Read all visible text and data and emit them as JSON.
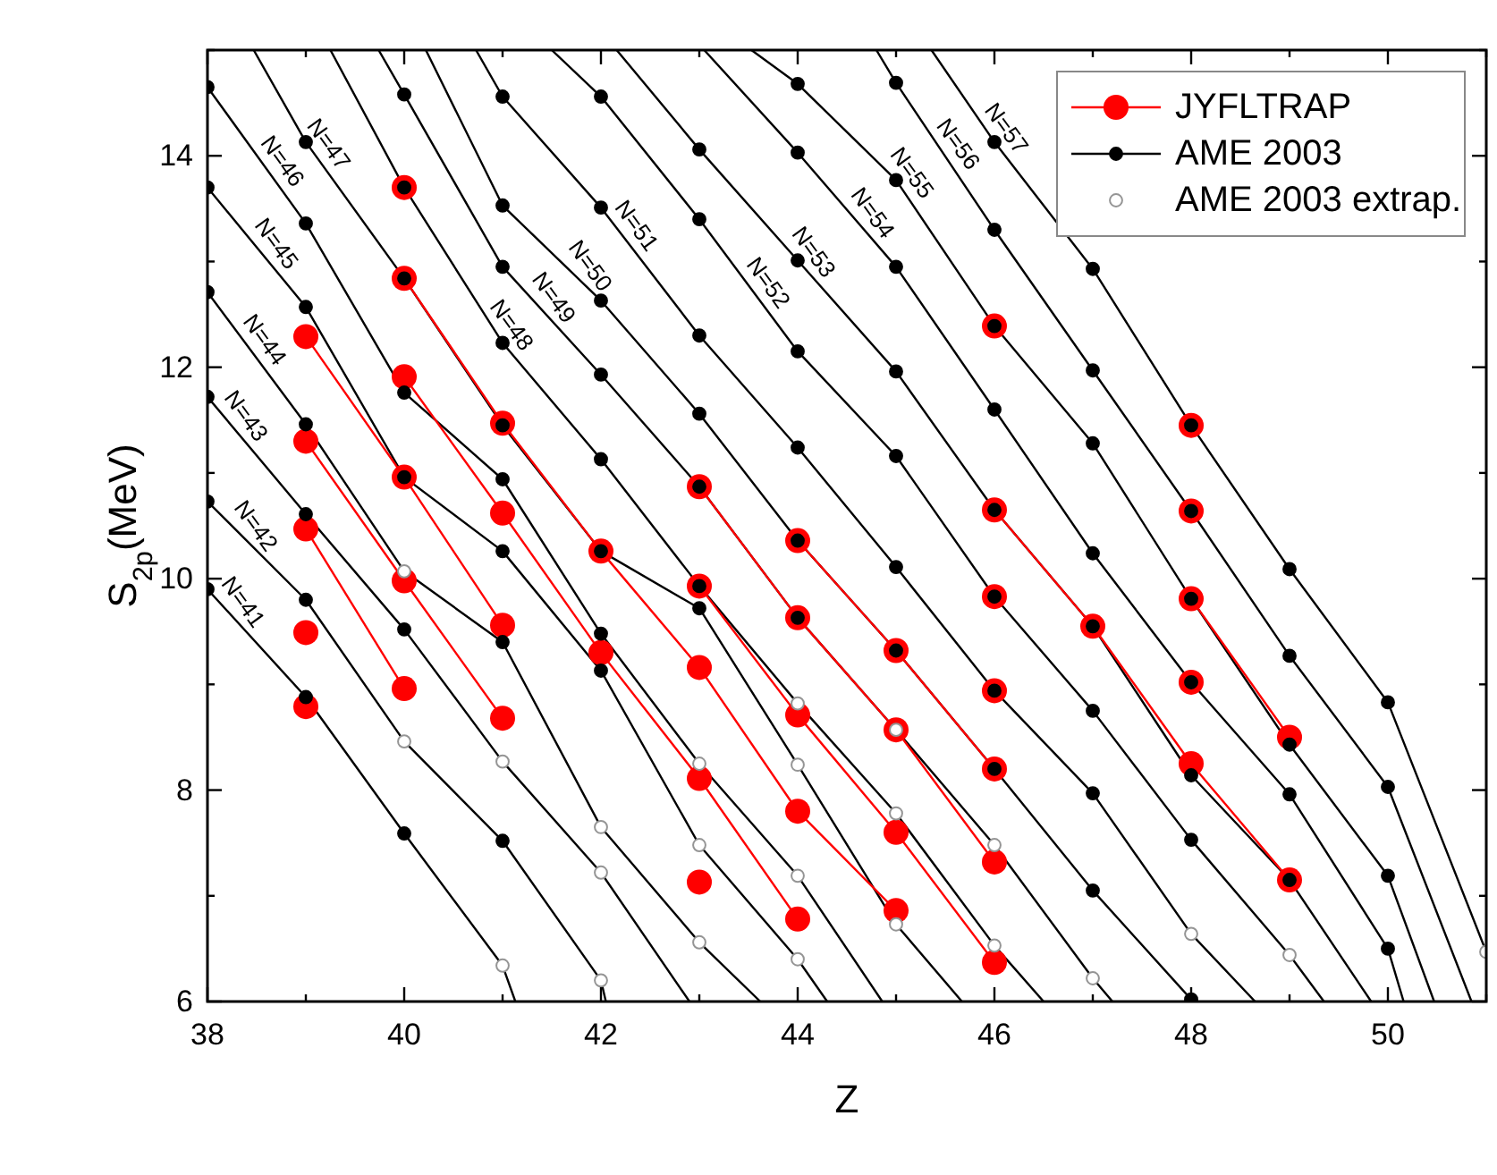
{
  "chart_data": {
    "type": "line",
    "xlabel": "Z",
    "ylabel": "S$_{2p}$(MeV)",
    "xlim": [
      38,
      51
    ],
    "ylim": [
      6,
      15
    ],
    "xticks": [
      38,
      {
        "value": 39,
        "label": null
      },
      40,
      {
        "value": 41,
        "label": null
      },
      42,
      {
        "value": 43,
        "label": null
      },
      44,
      {
        "value": 45,
        "label": null
      },
      46,
      {
        "value": 47,
        "label": null
      },
      48,
      {
        "value": 49,
        "label": null
      },
      50,
      {
        "value": 51,
        "label": null
      }
    ],
    "yticks": [
      6,
      {
        "value": 7,
        "label": null
      },
      8,
      {
        "value": 9,
        "label": null
      },
      10,
      {
        "value": 11,
        "label": null
      },
      12,
      {
        "value": 13,
        "label": null
      },
      14,
      {
        "value": 15,
        "label": null
      }
    ],
    "legend": "top right",
    "series": [
      {
        "color": "#000000",
        "marker": "none",
        "x": [
          38,
          39,
          40,
          41,
          41.13
        ],
        "values": [
          9.9,
          8.88,
          7.59,
          6.34,
          6.0
        ]
      },
      {
        "color": "#000000",
        "marker": "none",
        "x": [
          38,
          39,
          40,
          41,
          42,
          42.05
        ],
        "values": [
          10.73,
          9.8,
          8.46,
          7.52,
          6.2,
          6.0
        ]
      },
      {
        "color": "#000000",
        "marker": "none",
        "x": [
          38,
          39,
          40,
          41,
          42,
          42.9
        ],
        "values": [
          11.72,
          10.61,
          9.52,
          8.27,
          7.22,
          6.0
        ]
      },
      {
        "color": "#000000",
        "marker": "none",
        "x": [
          38,
          39,
          40,
          41,
          42,
          43,
          43.62
        ],
        "values": [
          12.71,
          11.46,
          10.07,
          9.4,
          7.65,
          6.56,
          6.0
        ]
      },
      {
        "color": "#000000",
        "marker": "none",
        "x": [
          38,
          39,
          40,
          41,
          42,
          43,
          44,
          44.3
        ],
        "values": [
          13.7,
          12.57,
          10.96,
          10.26,
          9.13,
          7.48,
          6.4,
          6.0
        ]
      },
      {
        "color": "#000000",
        "marker": "none",
        "x": [
          38,
          39,
          40,
          41,
          42,
          43,
          44,
          44.86
        ],
        "values": [
          14.65,
          13.36,
          11.76,
          10.94,
          9.48,
          8.25,
          7.19,
          6.0
        ]
      },
      {
        "color": "#000000",
        "marker": "none",
        "x": [
          38.47,
          39,
          40,
          41,
          42,
          43,
          44,
          45,
          45.67
        ],
        "values": [
          15.0,
          14.13,
          12.84,
          11.45,
          10.26,
          9.72,
          8.24,
          6.73,
          6.0
        ]
      },
      {
        "color": "#000000",
        "marker": "none",
        "x": [
          39.25,
          40,
          41,
          42,
          43,
          44,
          45,
          46,
          46.5
        ],
        "values": [
          15.0,
          13.7,
          12.23,
          11.13,
          9.93,
          8.82,
          7.78,
          6.53,
          6.0
        ]
      },
      {
        "color": "#000000",
        "marker": "none",
        "x": [
          39.74,
          40,
          41,
          42,
          43,
          44,
          45,
          46,
          47,
          47.2
        ],
        "values": [
          15.0,
          14.58,
          12.95,
          11.93,
          10.87,
          9.63,
          8.57,
          7.48,
          6.22,
          6.0
        ]
      },
      {
        "color": "#000000",
        "marker": "none",
        "x": [
          40.22,
          41,
          42,
          43,
          44,
          45,
          46,
          47,
          48
        ],
        "values": [
          15.0,
          13.53,
          12.63,
          11.56,
          10.36,
          9.32,
          8.2,
          7.05,
          6.02
        ]
      },
      {
        "color": "#000000",
        "marker": "none",
        "x": [
          40.73,
          41,
          42,
          43,
          44,
          45,
          46,
          47,
          48,
          48.65
        ],
        "values": [
          15.0,
          14.56,
          13.51,
          12.3,
          11.24,
          10.11,
          8.94,
          7.97,
          6.64,
          6.0
        ]
      },
      {
        "color": "#000000",
        "marker": "none",
        "x": [
          41.5,
          42,
          43,
          44,
          45,
          46,
          47,
          48,
          49,
          49.35
        ],
        "values": [
          15.0,
          14.56,
          13.4,
          12.15,
          11.16,
          9.83,
          8.75,
          7.53,
          6.44,
          6.0
        ]
      },
      {
        "color": "#000000",
        "marker": "none",
        "x": [
          42.16,
          43,
          44,
          45,
          46,
          47,
          48,
          49,
          49.83
        ],
        "values": [
          15.0,
          14.06,
          13.01,
          11.96,
          10.65,
          9.55,
          8.14,
          7.15,
          6.0
        ]
      },
      {
        "color": "#000000",
        "marker": "none",
        "x": [
          43.05,
          44,
          45,
          46,
          47,
          48,
          49,
          50,
          50.16
        ],
        "values": [
          15.0,
          14.03,
          12.95,
          11.6,
          10.24,
          9.02,
          7.96,
          6.5,
          6.0
        ]
      },
      {
        "color": "#000000",
        "marker": "none",
        "x": [
          43.53,
          44,
          45,
          46,
          47,
          48,
          49,
          50,
          50.47
        ],
        "values": [
          15.0,
          14.68,
          13.77,
          12.39,
          11.28,
          9.81,
          8.43,
          7.19,
          6.0
        ]
      },
      {
        "color": "#000000",
        "marker": "none",
        "x": [
          44.8,
          45,
          46,
          47,
          48,
          49,
          50,
          50.85
        ],
        "values": [
          15.0,
          14.69,
          13.3,
          11.97,
          10.64,
          9.27,
          8.03,
          6.0
        ]
      },
      {
        "color": "#000000",
        "marker": "none",
        "x": [
          45.36,
          46,
          47,
          48,
          49,
          50,
          51
        ],
        "values": [
          15.0,
          14.13,
          12.93,
          11.45,
          10.09,
          8.83,
          6.47
        ]
      },
      {
        "name": "JYFLTRAP",
        "color": "#ff0000",
        "marker": "circle",
        "x": [
          39
        ],
        "values": [
          8.79
        ]
      },
      {
        "color": "#ff0000",
        "marker": "circle",
        "x": [
          39
        ],
        "values": [
          9.49
        ]
      },
      {
        "color": "#ff0000",
        "marker": "circle",
        "x": [
          39,
          40
        ],
        "values": [
          10.47,
          8.96
        ]
      },
      {
        "color": "#ff0000",
        "marker": "circle",
        "x": [
          39,
          40,
          41
        ],
        "values": [
          11.3,
          9.98,
          8.68
        ]
      },
      {
        "color": "#ff0000",
        "marker": "circle",
        "x": [
          39,
          40,
          41,
          42,
          43
        ],
        "values": [
          12.29,
          10.96,
          9.56,
          null,
          7.13
        ]
      },
      {
        "color": "#ff0000",
        "marker": "circle",
        "x": [
          40,
          41,
          42,
          43,
          44
        ],
        "values": [
          11.91,
          10.62,
          9.3,
          8.11,
          6.78
        ]
      },
      {
        "color": "#ff0000",
        "marker": "circle",
        "x": [
          40,
          41,
          42,
          43,
          44,
          45
        ],
        "values": [
          12.84,
          11.47,
          10.26,
          9.16,
          7.8,
          6.86
        ]
      },
      {
        "color": "#ff0000",
        "marker": "circle",
        "x": [
          40,
          41,
          42,
          43,
          44,
          45,
          46
        ],
        "values": [
          13.7,
          null,
          null,
          9.93,
          8.71,
          7.6,
          6.37
        ]
      },
      {
        "color": "#ff0000",
        "marker": "circle",
        "x": [
          43,
          44,
          45,
          46
        ],
        "values": [
          10.87,
          9.63,
          8.57,
          7.32
        ]
      },
      {
        "color": "#ff0000",
        "marker": "circle",
        "x": [
          44,
          45,
          46
        ],
        "values": [
          10.36,
          9.32,
          8.2
        ]
      },
      {
        "color": "#ff0000",
        "marker": "circle",
        "x": [
          46
        ],
        "values": [
          8.94
        ]
      },
      {
        "color": "#ff0000",
        "marker": "circle",
        "x": [
          46
        ],
        "values": [
          9.83
        ]
      },
      {
        "color": "#ff0000",
        "marker": "circle",
        "x": [
          46,
          47,
          48,
          49
        ],
        "values": [
          10.65,
          9.55,
          8.25,
          7.15
        ]
      },
      {
        "color": "#ff0000",
        "marker": "circle",
        "x": [
          48
        ],
        "values": [
          9.02
        ]
      },
      {
        "color": "#ff0000",
        "marker": "circle",
        "x": [
          46,
          47,
          48,
          49
        ],
        "values": [
          12.39,
          null,
          9.81,
          8.5
        ]
      },
      {
        "color": "#ff0000",
        "marker": "circle",
        "x": [
          48
        ],
        "values": [
          10.64
        ]
      },
      {
        "color": "#ff0000",
        "marker": "circle",
        "x": [
          48
        ],
        "values": [
          11.45
        ]
      },
      {
        "name": "AME 2003",
        "type": "scatter",
        "color": "#000000",
        "marker": "circle",
        "x": [
          38,
          38,
          38,
          38,
          38,
          38,
          39,
          39,
          39,
          39,
          39,
          39,
          39,
          40,
          40,
          40,
          40,
          40,
          40,
          40,
          41,
          41,
          41,
          41,
          41,
          41,
          41,
          41,
          41,
          42,
          42,
          42,
          42,
          42,
          42,
          42,
          42,
          43,
          43,
          43,
          43,
          43,
          43,
          43,
          44,
          44,
          44,
          44,
          44,
          44,
          44,
          45,
          45,
          45,
          45,
          45,
          45,
          45,
          46,
          46,
          46,
          46,
          46,
          46,
          46,
          46,
          47,
          47,
          47,
          47,
          47,
          47,
          47,
          47,
          48,
          48,
          48,
          48,
          48,
          48,
          48,
          49,
          49,
          49,
          49,
          49,
          50,
          50,
          50,
          50
        ],
        "values": [
          9.9,
          10.73,
          11.72,
          12.71,
          13.7,
          14.65,
          8.88,
          9.8,
          10.61,
          11.46,
          12.57,
          13.36,
          14.13,
          7.59,
          9.52,
          10.96,
          11.76,
          12.84,
          13.7,
          14.58,
          7.52,
          9.4,
          10.26,
          10.94,
          11.45,
          12.23,
          12.95,
          13.53,
          14.56,
          9.13,
          9.48,
          10.26,
          11.13,
          11.93,
          12.63,
          13.51,
          14.56,
          9.72,
          9.93,
          10.87,
          11.56,
          12.3,
          13.4,
          14.06,
          9.63,
          10.36,
          11.24,
          12.15,
          13.01,
          14.03,
          14.68,
          9.32,
          10.11,
          11.16,
          11.96,
          12.95,
          13.77,
          14.69,
          8.2,
          8.94,
          9.83,
          10.65,
          11.6,
          12.39,
          13.3,
          14.13,
          7.05,
          7.97,
          8.75,
          9.55,
          10.24,
          11.28,
          11.97,
          12.93,
          6.02,
          7.53,
          8.14,
          9.02,
          9.81,
          10.64,
          11.45,
          7.15,
          7.96,
          8.43,
          9.27,
          10.09,
          6.5,
          7.19,
          8.03,
          8.83
        ]
      },
      {
        "name": "AME 2003 extrap.",
        "type": "scatter",
        "color": "#ffffff",
        "marker": "circle",
        "x": [
          40,
          40,
          41,
          41,
          42,
          42,
          42,
          43,
          43,
          43,
          44,
          44,
          44,
          44,
          45,
          45,
          45,
          46,
          46,
          47,
          48,
          49,
          51
        ],
        "values": [
          8.46,
          10.07,
          6.34,
          8.27,
          6.2,
          7.22,
          7.65,
          6.56,
          7.48,
          8.25,
          6.4,
          7.19,
          8.24,
          8.82,
          6.73,
          7.78,
          8.57,
          6.53,
          7.48,
          6.22,
          6.64,
          6.44,
          6.47
        ]
      }
    ],
    "annotations": [
      {
        "text": "N=41",
        "x": 38.22,
        "y": 9.68
      },
      {
        "text": "N=42",
        "x": 38.35,
        "y": 10.4
      },
      {
        "text": "N=43",
        "x": 38.25,
        "y": 11.44
      },
      {
        "text": "N=44",
        "x": 38.44,
        "y": 12.16
      },
      {
        "text": "N=45",
        "x": 38.56,
        "y": 13.07
      },
      {
        "text": "N=46",
        "x": 38.62,
        "y": 13.85
      },
      {
        "text": "N=47",
        "x": 39.09,
        "y": 14.01
      },
      {
        "text": "N=48",
        "x": 40.95,
        "y": 12.3
      },
      {
        "text": "N=49",
        "x": 41.38,
        "y": 12.56
      },
      {
        "text": "N=50",
        "x": 41.75,
        "y": 12.86
      },
      {
        "text": "N=51",
        "x": 42.22,
        "y": 13.24
      },
      {
        "text": "N=52",
        "x": 43.56,
        "y": 12.7
      },
      {
        "text": "N=53",
        "x": 44.02,
        "y": 12.99
      },
      {
        "text": "N=54",
        "x": 44.62,
        "y": 13.36
      },
      {
        "text": "N=55",
        "x": 45.02,
        "y": 13.74
      },
      {
        "text": "N=56",
        "x": 45.49,
        "y": 14.01
      },
      {
        "text": "N=57",
        "x": 45.98,
        "y": 14.16
      }
    ]
  }
}
